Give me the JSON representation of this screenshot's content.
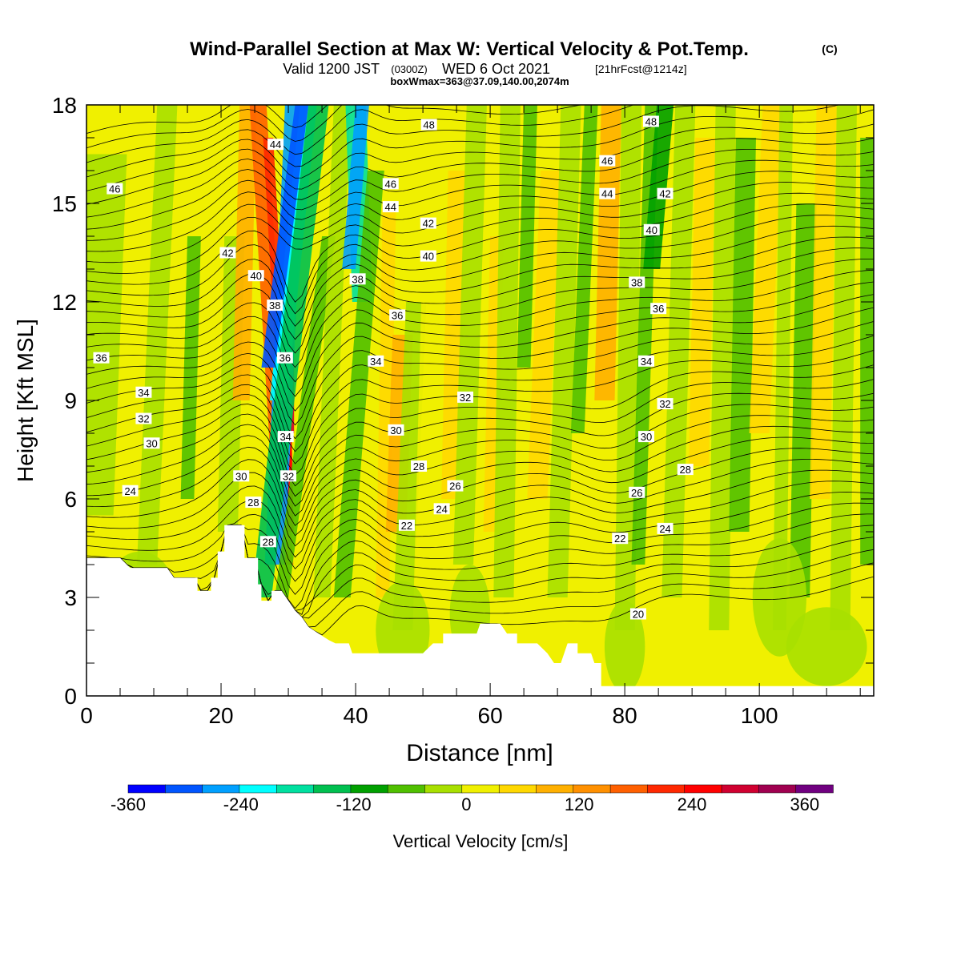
{
  "header": {
    "title": "Wind-Parallel Section at Max W: Vertical Velocity & Pot.Temp.",
    "title_suffix": "(C)",
    "valid_prefix": "Valid 1200 JST",
    "valid_zone": "(0300Z)",
    "valid_date": "WED 6 Oct 2021",
    "forecast": "[21hrFcst@1214z]",
    "box_info": "boxWmax=363@37.09,140.00,2074m"
  },
  "chart_data": {
    "type": "heatmap",
    "xlabel": "Distance [nm]",
    "ylabel": "Height [Kft MSL]",
    "xlim": [
      0,
      117
    ],
    "ylim": [
      0,
      18
    ],
    "x_ticks": [
      0,
      20,
      40,
      60,
      80,
      100
    ],
    "y_ticks": [
      0,
      3,
      6,
      9,
      12,
      15,
      18
    ],
    "colorbar": {
      "label": "Vertical Velocity [cm/s]",
      "range": [
        -360,
        390
      ],
      "step": 30,
      "tick_labels": [
        -360,
        -240,
        -120,
        0,
        120,
        240,
        360
      ],
      "colors": [
        "#0000ff",
        "#0055ff",
        "#00a0ff",
        "#00ffff",
        "#00e0a0",
        "#00c050",
        "#00a000",
        "#50c000",
        "#a8e000",
        "#f0f000",
        "#ffd800",
        "#ffb000",
        "#ff9000",
        "#ff6000",
        "#ff2800",
        "#ff0000",
        "#d00030",
        "#a00050",
        "#700080"
      ]
    },
    "contour_variable": "Potential temperature (C)",
    "contour_labels": [
      {
        "text": "46",
        "x": 4.2,
        "y": 15.45
      },
      {
        "text": "36",
        "x": 2.2,
        "y": 10.3
      },
      {
        "text": "34",
        "x": 8.5,
        "y": 9.25
      },
      {
        "text": "32",
        "x": 8.5,
        "y": 8.45
      },
      {
        "text": "30",
        "x": 9.7,
        "y": 7.7
      },
      {
        "text": "24",
        "x": 6.5,
        "y": 6.25
      },
      {
        "text": "42",
        "x": 21.0,
        "y": 13.5
      },
      {
        "text": "40",
        "x": 25.2,
        "y": 12.8
      },
      {
        "text": "44",
        "x": 28.1,
        "y": 16.8
      },
      {
        "text": "38",
        "x": 28.0,
        "y": 11.9
      },
      {
        "text": "36",
        "x": 29.5,
        "y": 10.3
      },
      {
        "text": "34",
        "x": 29.6,
        "y": 7.9
      },
      {
        "text": "32",
        "x": 30.0,
        "y": 6.7
      },
      {
        "text": "30",
        "x": 23.0,
        "y": 6.7
      },
      {
        "text": "28",
        "x": 24.8,
        "y": 5.9
      },
      {
        "text": "28",
        "x": 27.0,
        "y": 4.7
      },
      {
        "text": "46",
        "x": 45.2,
        "y": 15.6
      },
      {
        "text": "44",
        "x": 45.2,
        "y": 14.9
      },
      {
        "text": "42",
        "x": 50.8,
        "y": 14.4
      },
      {
        "text": "40",
        "x": 50.8,
        "y": 13.4
      },
      {
        "text": "38",
        "x": 40.3,
        "y": 12.7
      },
      {
        "text": "36",
        "x": 46.2,
        "y": 11.6
      },
      {
        "text": "34",
        "x": 43.0,
        "y": 10.2
      },
      {
        "text": "32",
        "x": 56.3,
        "y": 9.1
      },
      {
        "text": "30",
        "x": 46.0,
        "y": 8.1
      },
      {
        "text": "28",
        "x": 49.4,
        "y": 7.0
      },
      {
        "text": "26",
        "x": 54.8,
        "y": 6.4
      },
      {
        "text": "24",
        "x": 52.8,
        "y": 5.7
      },
      {
        "text": "22",
        "x": 47.6,
        "y": 5.2
      },
      {
        "text": "48",
        "x": 50.9,
        "y": 17.4
      },
      {
        "text": "48",
        "x": 83.9,
        "y": 17.5
      },
      {
        "text": "46",
        "x": 77.4,
        "y": 16.3
      },
      {
        "text": "44",
        "x": 77.4,
        "y": 15.3
      },
      {
        "text": "42",
        "x": 86.0,
        "y": 15.3
      },
      {
        "text": "40",
        "x": 84.0,
        "y": 14.2
      },
      {
        "text": "38",
        "x": 81.8,
        "y": 12.6
      },
      {
        "text": "36",
        "x": 85.0,
        "y": 11.8
      },
      {
        "text": "34",
        "x": 83.2,
        "y": 10.2
      },
      {
        "text": "32",
        "x": 86.0,
        "y": 8.9
      },
      {
        "text": "30",
        "x": 83.2,
        "y": 7.9
      },
      {
        "text": "28",
        "x": 89.0,
        "y": 6.9
      },
      {
        "text": "26",
        "x": 81.8,
        "y": 6.2
      },
      {
        "text": "24",
        "x": 86.0,
        "y": 5.1
      },
      {
        "text": "22",
        "x": 79.3,
        "y": 4.8
      },
      {
        "text": "20",
        "x": 82.0,
        "y": 2.5
      }
    ],
    "terrain_top": [
      [
        0,
        4.2
      ],
      [
        5,
        4.2
      ],
      [
        6.5,
        3.9
      ],
      [
        12,
        3.9
      ],
      [
        13,
        3.6
      ],
      [
        16.5,
        3.6
      ],
      [
        16.5,
        3.2
      ],
      [
        18.5,
        3.2
      ],
      [
        18.5,
        3.6
      ],
      [
        19.5,
        3.6
      ],
      [
        19.5,
        4.4
      ],
      [
        20.5,
        4.4
      ],
      [
        20.5,
        5.2
      ],
      [
        23.5,
        5.2
      ],
      [
        23.5,
        4.2
      ],
      [
        25.5,
        4.2
      ],
      [
        25.5,
        3.4
      ],
      [
        26,
        3.4
      ],
      [
        26,
        2.9
      ],
      [
        27.5,
        2.9
      ],
      [
        27.5,
        3.2
      ],
      [
        29,
        3.2
      ],
      [
        30,
        2.9
      ],
      [
        31,
        2.6
      ],
      [
        32,
        2.4
      ],
      [
        33,
        2.1
      ],
      [
        34.5,
        1.9
      ],
      [
        36,
        1.7
      ],
      [
        37,
        1.6
      ],
      [
        39,
        1.6
      ],
      [
        39.5,
        1.3
      ],
      [
        45,
        1.3
      ],
      [
        50,
        1.3
      ],
      [
        51.5,
        1.6
      ],
      [
        53,
        1.6
      ],
      [
        53,
        1.9
      ],
      [
        58,
        1.9
      ],
      [
        58.5,
        2.2
      ],
      [
        61.5,
        2.2
      ],
      [
        62.5,
        1.9
      ],
      [
        64,
        1.9
      ],
      [
        64,
        1.6
      ],
      [
        67,
        1.6
      ],
      [
        68.5,
        1.3
      ],
      [
        69.5,
        1.0
      ],
      [
        70.5,
        1.0
      ],
      [
        71,
        1.3
      ],
      [
        71.5,
        1.6
      ],
      [
        73,
        1.6
      ],
      [
        73,
        1.3
      ],
      [
        75,
        1.3
      ],
      [
        75.5,
        1.0
      ],
      [
        76.5,
        1.0
      ],
      [
        76.5,
        0.3
      ],
      [
        78,
        0.3
      ],
      [
        78.5,
        0.3
      ],
      [
        117,
        0.3
      ]
    ]
  }
}
